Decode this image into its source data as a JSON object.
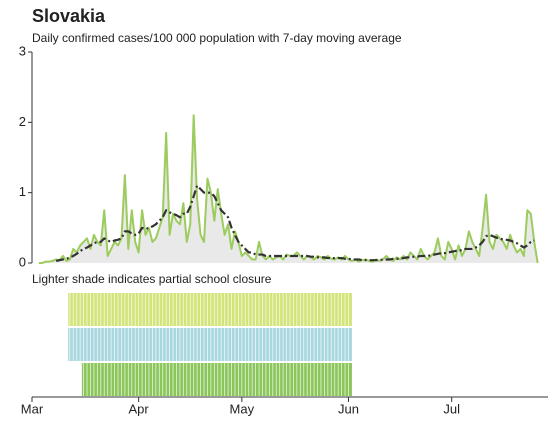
{
  "chart_data": [
    {
      "type": "line",
      "title": "Slovakia",
      "subtitle": "Daily confirmed cases/100 000 population with 7-day moving average",
      "xlim": [
        0,
        150
      ],
      "ylim": [
        0,
        3
      ],
      "yticks": [
        0,
        1,
        2,
        3
      ],
      "x": [
        2,
        3,
        4,
        5,
        6,
        7,
        8,
        9,
        10,
        11,
        12,
        13,
        14,
        15,
        16,
        17,
        18,
        19,
        20,
        21,
        22,
        23,
        24,
        25,
        26,
        27,
        28,
        29,
        30,
        31,
        32,
        33,
        34,
        35,
        36,
        37,
        38,
        39,
        40,
        41,
        42,
        43,
        44,
        45,
        46,
        47,
        48,
        49,
        50,
        51,
        52,
        53,
        54,
        55,
        56,
        57,
        58,
        59,
        60,
        61,
        62,
        63,
        64,
        65,
        66,
        67,
        68,
        69,
        70,
        71,
        72,
        73,
        74,
        75,
        76,
        77,
        78,
        79,
        80,
        81,
        82,
        83,
        84,
        85,
        86,
        87,
        88,
        89,
        90,
        91,
        92,
        93,
        94,
        95,
        96,
        97,
        98,
        99,
        100,
        101,
        102,
        103,
        104,
        105,
        106,
        107,
        108,
        109,
        110,
        111,
        112,
        113,
        114,
        115,
        116,
        117,
        118,
        119,
        120,
        121,
        122,
        123,
        124,
        125,
        126,
        127,
        128,
        129,
        130,
        131,
        132,
        133,
        134,
        135,
        136,
        137,
        138,
        139,
        140,
        141,
        142,
        143,
        144,
        145,
        146,
        147
      ],
      "series": [
        {
          "color": "#9ccb5e",
          "fill": "#e9e9e9",
          "linestyle": "solid",
          "values": [
            0,
            0,
            0.02,
            0.02,
            0.03,
            0.05,
            0.04,
            0.1,
            0.03,
            0.05,
            0.2,
            0.15,
            0.25,
            0.3,
            0.35,
            0.2,
            0.4,
            0.3,
            0.25,
            0.75,
            0.1,
            0.2,
            0.3,
            0.25,
            0.35,
            1.25,
            0.2,
            0.75,
            0.3,
            0.15,
            0.75,
            0.4,
            0.5,
            0.3,
            0.35,
            0.5,
            0.65,
            1.85,
            0.4,
            0.7,
            0.6,
            0.55,
            0.85,
            0.3,
            0.55,
            2.1,
            0.9,
            0.4,
            0.3,
            1.2,
            1.0,
            0.6,
            1.05,
            0.7,
            0.4,
            0.55,
            0.2,
            0.45,
            0.3,
            0.1,
            0.15,
            0.1,
            0.05,
            0.05,
            0.3,
            0.1,
            0.05,
            0.1,
            0.05,
            0.08,
            0.1,
            0.05,
            0.12,
            0.1,
            0.1,
            0.15,
            0.1,
            0.05,
            0.1,
            0.08,
            0.05,
            0.1,
            0.08,
            0.05,
            0.1,
            0.06,
            0.05,
            0.08,
            0.05,
            0.1,
            0.05,
            0.03,
            0.05,
            0.02,
            0.04,
            0.05,
            0.03,
            0.02,
            0.05,
            0.03,
            0.05,
            0.1,
            0.05,
            0.03,
            0.08,
            0.05,
            0.1,
            0.05,
            0.15,
            0.1,
            0.05,
            0.2,
            0.1,
            0.05,
            0.1,
            0.15,
            0.35,
            0.1,
            0.05,
            0.3,
            0.2,
            0.05,
            0.25,
            0.1,
            0.2,
            0.45,
            0.3,
            0.2,
            0.1,
            0.5,
            0.97,
            0.3,
            0.2,
            0.4,
            0.35,
            0.3,
            0.2,
            0.4,
            0.25,
            0.15,
            0.2,
            0.1,
            0.75,
            0.7,
            0.3,
            0
          ]
        },
        {
          "color": "#333333",
          "linestyle": "dashdot",
          "values": [
            null,
            null,
            null,
            null,
            null,
            0.03,
            0.04,
            0.05,
            0.06,
            0.08,
            0.1,
            0.13,
            0.17,
            0.2,
            0.22,
            0.25,
            0.28,
            0.3,
            0.3,
            0.35,
            0.32,
            0.3,
            0.32,
            0.33,
            0.35,
            0.45,
            0.45,
            0.42,
            0.4,
            0.42,
            0.5,
            0.48,
            0.5,
            0.52,
            0.55,
            0.6,
            0.65,
            0.75,
            0.72,
            0.7,
            0.68,
            0.65,
            0.7,
            0.7,
            0.8,
            0.95,
            1.1,
            1.05,
            1.0,
            1.0,
            1.0,
            0.95,
            0.85,
            0.75,
            0.7,
            0.65,
            0.5,
            0.4,
            0.3,
            0.25,
            0.2,
            0.15,
            0.15,
            0.12,
            0.12,
            0.12,
            0.1,
            0.1,
            0.1,
            0.1,
            0.1,
            0.1,
            0.1,
            0.1,
            0.1,
            0.1,
            0.1,
            0.1,
            0.1,
            0.09,
            0.09,
            0.08,
            0.08,
            0.08,
            0.07,
            0.07,
            0.07,
            0.07,
            0.07,
            0.06,
            0.06,
            0.05,
            0.05,
            0.05,
            0.04,
            0.04,
            0.04,
            0.04,
            0.04,
            0.04,
            0.05,
            0.05,
            0.05,
            0.06,
            0.06,
            0.06,
            0.07,
            0.08,
            0.08,
            0.09,
            0.09,
            0.1,
            0.1,
            0.1,
            0.11,
            0.12,
            0.13,
            0.14,
            0.14,
            0.15,
            0.16,
            0.17,
            0.18,
            0.18,
            0.2,
            0.2,
            0.2,
            0.22,
            0.25,
            0.3,
            0.38,
            0.4,
            0.38,
            0.36,
            0.35,
            0.33,
            0.33,
            0.32,
            0.3,
            0.28,
            0.25,
            0.22,
            0.25,
            0.3,
            0.32,
            null
          ]
        }
      ]
    },
    {
      "type": "timeline",
      "title": "Lighter shade indicates partial school closure",
      "xlim": [
        0,
        150
      ],
      "xticks": [
        {
          "value": 0,
          "label": "Mar"
        },
        {
          "value": 31,
          "label": "Apr"
        },
        {
          "value": 61,
          "label": "May"
        },
        {
          "value": 92,
          "label": "Jun"
        },
        {
          "value": 122,
          "label": "Jul"
        }
      ],
      "rows": [
        {
          "color": "#d3e47a",
          "start": 10.5,
          "end": 93
        },
        {
          "color": "#a9d7df",
          "start": 10.5,
          "end": 93
        },
        {
          "color": "#8bc65a",
          "start": 14.5,
          "end": 93
        }
      ]
    }
  ]
}
